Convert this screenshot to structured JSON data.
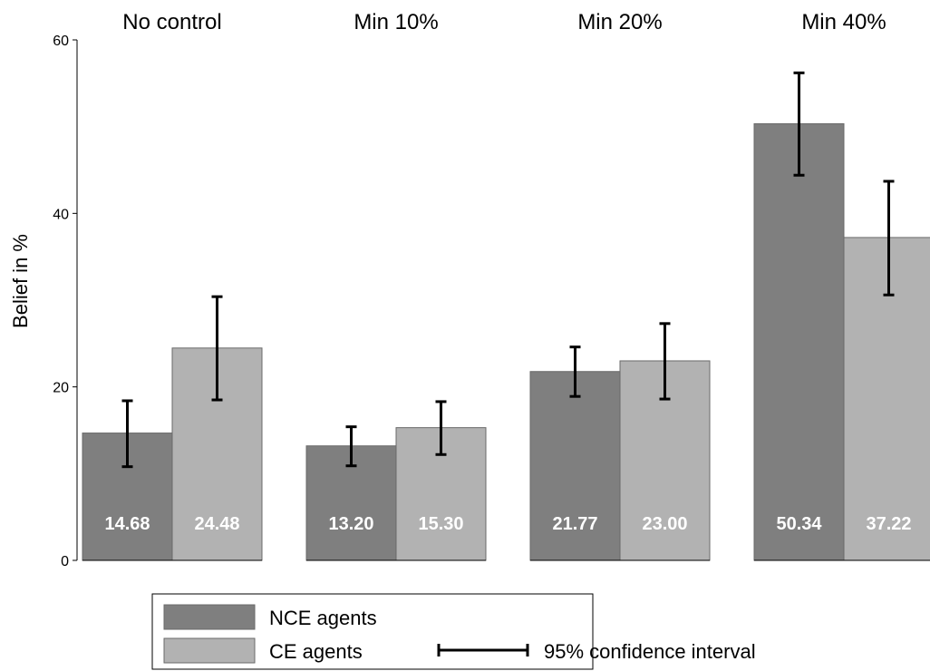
{
  "chart_data": {
    "type": "bar",
    "ylabel": "Belief in %",
    "ylim": [
      0,
      60
    ],
    "yticks": [
      0,
      20,
      40,
      60
    ],
    "grid": false,
    "panels": [
      "No control",
      "Min 10%",
      "Min 20%",
      "Min 40%"
    ],
    "series": [
      {
        "name": "NCE agents",
        "color": "#7f7f7f",
        "values": [
          14.68,
          13.2,
          21.77,
          50.34
        ],
        "labels": [
          "14.68",
          "13.20",
          "21.77",
          "50.34"
        ],
        "ci_low": [
          10.8,
          10.9,
          18.9,
          44.4
        ],
        "ci_high": [
          18.4,
          15.4,
          24.6,
          56.2
        ]
      },
      {
        "name": "CE agents",
        "color": "#b2b2b2",
        "values": [
          24.48,
          15.3,
          23.0,
          37.22
        ],
        "labels": [
          "24.48",
          "15.30",
          "23.00",
          "37.22"
        ],
        "ci_low": [
          18.5,
          12.2,
          18.6,
          30.6
        ],
        "ci_high": [
          30.4,
          18.3,
          27.3,
          43.7
        ]
      }
    ],
    "legend": {
      "position": "bottom",
      "ci_label": "95% confidence interval",
      "ci_color": "#000000"
    }
  }
}
